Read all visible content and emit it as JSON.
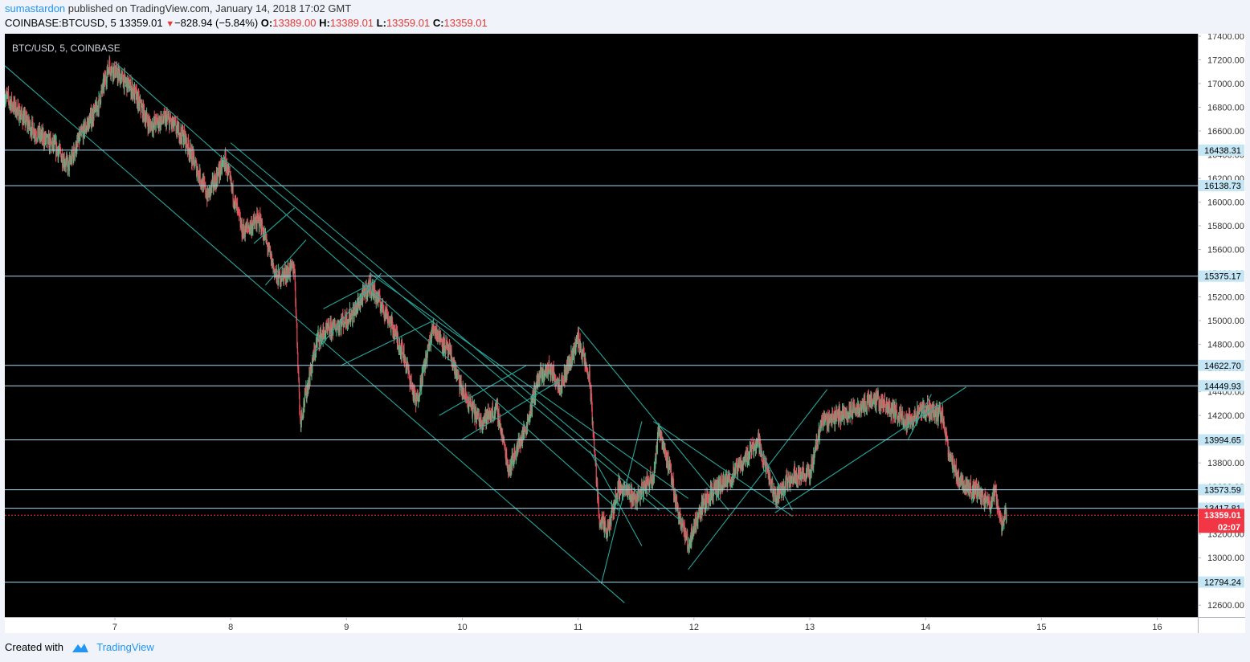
{
  "header": {
    "author": "sumastardon",
    "published_text": "published on TradingView.com, January 14, 2018 17:02 GMT",
    "symbol": "COINBASE:BTCUSD, 5",
    "last": "13359.01",
    "change": "−828.94 (−5.84%)",
    "o_label": "O:",
    "o_value": "13389.00",
    "h_label": "H:",
    "h_value": "13389.01",
    "l_label": "L:",
    "l_value": "13359.01",
    "c_label": "C:",
    "c_value": "13359.01"
  },
  "footer": {
    "created_with": "Created with",
    "brand": "TradingView"
  },
  "colors": {
    "background": "#000000",
    "up_candle": "#53b987",
    "down_candle": "#eb4d5c",
    "level_line": "#a9d8ee",
    "trend_line": "#26a69a",
    "price_tag_bg": "#c5e6f5",
    "current_price_tag": "#f23645"
  },
  "chart_data": {
    "type": "candlestick",
    "title": "BTC/USD, 5, COINBASE",
    "x_ticks": [
      "7",
      "8",
      "9",
      "10",
      "11",
      "12",
      "13",
      "14",
      "15",
      "16"
    ],
    "y_ticks": [
      "17400.00",
      "17200.00",
      "17000.00",
      "16800.00",
      "16600.00",
      "16400.00",
      "16200.00",
      "16000.00",
      "15800.00",
      "15600.00",
      "15400.00",
      "15200.00",
      "15000.00",
      "14800.00",
      "14600.00",
      "14400.00",
      "14200.00",
      "14000.00",
      "13800.00",
      "13600.00",
      "13400.00",
      "13200.00",
      "13000.00",
      "12800.00",
      "12600.00"
    ],
    "ylim": [
      12500,
      17420
    ],
    "xlim": [
      6.05,
      16.35
    ],
    "levels": [
      {
        "label": "16438.31",
        "value": 16438.31
      },
      {
        "label": "16138.73",
        "value": 16138.73
      },
      {
        "label": "15375.17",
        "value": 15375.17
      },
      {
        "label": "14622.70",
        "value": 14622.7
      },
      {
        "label": "14449.93",
        "value": 14449.93
      },
      {
        "label": "13994.65",
        "value": 13994.65
      },
      {
        "label": "13573.59",
        "value": 13573.59
      },
      {
        "label": "13417.81",
        "value": 13417.81
      },
      {
        "label": "12794.24",
        "value": 12794.24
      }
    ],
    "current_price": {
      "label": "13359.01",
      "value": 13359.01,
      "countdown": "02:07"
    },
    "price_path": [
      [
        6.05,
        16900
      ],
      [
        6.3,
        16600
      ],
      [
        6.5,
        16450
      ],
      [
        6.6,
        16300
      ],
      [
        6.7,
        16550
      ],
      [
        6.85,
        16800
      ],
      [
        6.95,
        17150
      ],
      [
        7.15,
        16950
      ],
      [
        7.3,
        16650
      ],
      [
        7.45,
        16700
      ],
      [
        7.6,
        16550
      ],
      [
        7.8,
        16050
      ],
      [
        7.95,
        16350
      ],
      [
        8.1,
        15750
      ],
      [
        8.25,
        15850
      ],
      [
        8.4,
        15350
      ],
      [
        8.55,
        15450
      ],
      [
        8.6,
        14150
      ],
      [
        8.75,
        14850
      ],
      [
        8.9,
        14950
      ],
      [
        9.05,
        15050
      ],
      [
        9.2,
        15300
      ],
      [
        9.35,
        15050
      ],
      [
        9.5,
        14700
      ],
      [
        9.6,
        14300
      ],
      [
        9.75,
        14950
      ],
      [
        9.9,
        14700
      ],
      [
        10.0,
        14400
      ],
      [
        10.15,
        14150
      ],
      [
        10.3,
        14250
      ],
      [
        10.4,
        13750
      ],
      [
        10.55,
        14100
      ],
      [
        10.65,
        14500
      ],
      [
        10.75,
        14600
      ],
      [
        10.85,
        14450
      ],
      [
        11.0,
        14850
      ],
      [
        11.1,
        14500
      ],
      [
        11.18,
        13350
      ],
      [
        11.25,
        13200
      ],
      [
        11.35,
        13600
      ],
      [
        11.5,
        13500
      ],
      [
        11.65,
        13700
      ],
      [
        11.7,
        14100
      ],
      [
        11.8,
        13700
      ],
      [
        11.85,
        13450
      ],
      [
        11.95,
        13100
      ],
      [
        12.05,
        13400
      ],
      [
        12.15,
        13550
      ],
      [
        12.3,
        13650
      ],
      [
        12.45,
        13850
      ],
      [
        12.55,
        14000
      ],
      [
        12.7,
        13500
      ],
      [
        12.85,
        13700
      ],
      [
        13.0,
        13700
      ],
      [
        13.1,
        14150
      ],
      [
        13.25,
        14200
      ],
      [
        13.4,
        14250
      ],
      [
        13.55,
        14350
      ],
      [
        13.7,
        14250
      ],
      [
        13.85,
        14150
      ],
      [
        14.0,
        14250
      ],
      [
        14.15,
        14200
      ],
      [
        14.2,
        13850
      ],
      [
        14.3,
        13650
      ],
      [
        14.45,
        13550
      ],
      [
        14.55,
        13450
      ],
      [
        14.6,
        13550
      ],
      [
        14.65,
        13280
      ],
      [
        14.7,
        13359
      ]
    ]
  }
}
